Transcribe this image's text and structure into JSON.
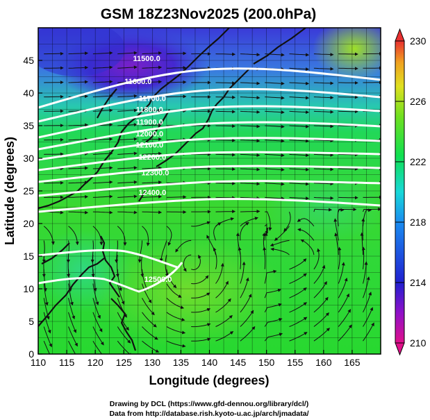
{
  "title": "GSM 18Z23Nov2025 (200.0hPa)",
  "x_axis": {
    "label": "Longitude (degrees)",
    "min": 110,
    "max": 170,
    "ticks": [
      "110",
      "115",
      "120",
      "125",
      "130",
      "135",
      "140",
      "145",
      "150",
      "155",
      "160",
      "165"
    ]
  },
  "y_axis": {
    "label": "Latitude  (degrees)",
    "min": 0,
    "max": 50,
    "ticks": [
      "0",
      "5",
      "10",
      "15",
      "20",
      "25",
      "30",
      "35",
      "40",
      "45"
    ]
  },
  "colorbar": {
    "min": 210,
    "max": 230,
    "ticks": [
      "210",
      "214",
      "218",
      "222",
      "226",
      "230"
    ],
    "colors": [
      "#e0108a",
      "#8f10c8",
      "#2020d0",
      "#1a8cf0",
      "#18d8d8",
      "#10e050",
      "#70e020",
      "#e0e020",
      "#f0a020",
      "#e83030"
    ]
  },
  "contours": [
    {
      "label": "11500.0",
      "lon": 129,
      "lat": 45.3
    },
    {
      "label": "11600.0",
      "lon": 127.5,
      "lat": 41.8
    },
    {
      "label": "11700.0",
      "lon": 130,
      "lat": 39.2
    },
    {
      "label": "11800.0",
      "lon": 129.5,
      "lat": 37.5
    },
    {
      "label": "11900.0",
      "lon": 129.5,
      "lat": 35.6
    },
    {
      "label": "12000.0",
      "lon": 129.5,
      "lat": 33.8
    },
    {
      "label": "12100.0",
      "lon": 129.5,
      "lat": 32.1
    },
    {
      "label": "12200.0",
      "lon": 130,
      "lat": 30.2
    },
    {
      "label": "12300.0",
      "lon": 130.5,
      "lat": 27.8
    },
    {
      "label": "12400.0",
      "lon": 130,
      "lat": 24.8
    },
    {
      "label": "12500.0",
      "lon": 131,
      "lat": 11.5
    }
  ],
  "credits": {
    "line1": "Drawing by DCL (https://www.gfd-dennou.org/library/dcl/)",
    "line2": "Data from http://database.rish.kyoto-u.ac.jp/arch/jmadata/"
  }
}
